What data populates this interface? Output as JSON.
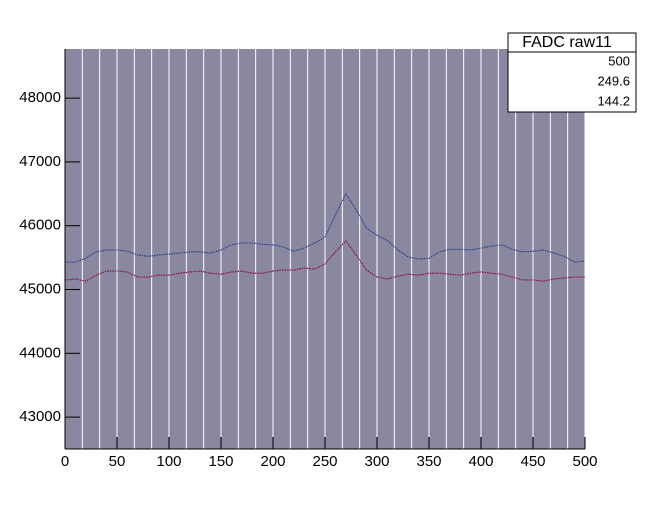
{
  "chart_data": {
    "type": "line",
    "stats_box": {
      "title": "FADC raw11",
      "values": [
        500,
        249.6,
        144.2
      ]
    },
    "x": [
      0,
      10,
      20,
      30,
      40,
      50,
      60,
      70,
      80,
      90,
      100,
      110,
      120,
      130,
      140,
      150,
      160,
      170,
      180,
      190,
      200,
      210,
      220,
      230,
      240,
      250,
      260,
      270,
      280,
      290,
      300,
      310,
      320,
      330,
      340,
      350,
      360,
      370,
      380,
      390,
      400,
      410,
      420,
      430,
      440,
      450,
      460,
      470,
      480,
      490,
      500
    ],
    "series": [
      {
        "color": "#2b3f8f",
        "values": [
          45430,
          45430,
          45490,
          45590,
          45620,
          45620,
          45600,
          45540,
          45520,
          45540,
          45555,
          45570,
          45590,
          45590,
          45570,
          45620,
          45700,
          45730,
          45730,
          45710,
          45700,
          45665,
          45600,
          45650,
          45730,
          45820,
          46170,
          46500,
          46250,
          45960,
          45850,
          45770,
          45620,
          45510,
          45480,
          45490,
          45590,
          45630,
          45630,
          45620,
          45650,
          45680,
          45700,
          45630,
          45590,
          45600,
          45620,
          45570,
          45520,
          45430,
          45445
        ]
      },
      {
        "color": "#8b0f3f",
        "values": [
          45150,
          45165,
          45130,
          45225,
          45290,
          45290,
          45275,
          45195,
          45195,
          45225,
          45225,
          45255,
          45275,
          45290,
          45255,
          45240,
          45275,
          45290,
          45255,
          45255,
          45290,
          45305,
          45305,
          45335,
          45320,
          45400,
          45590,
          45760,
          45540,
          45305,
          45195,
          45165,
          45210,
          45240,
          45225,
          45255,
          45255,
          45240,
          45225,
          45255,
          45275,
          45255,
          45240,
          45195,
          45150,
          45150,
          45130,
          45165,
          45180,
          45195,
          45195
        ]
      }
    ],
    "xlim": [
      0,
      500
    ],
    "xticks": [
      0,
      50,
      100,
      150,
      200,
      250,
      300,
      350,
      400,
      450,
      500
    ],
    "ylim": [
      42500,
      48770
    ],
    "yticks": [
      43000,
      44000,
      45000,
      46000,
      47000,
      48000
    ],
    "background": "#8a87a0"
  }
}
